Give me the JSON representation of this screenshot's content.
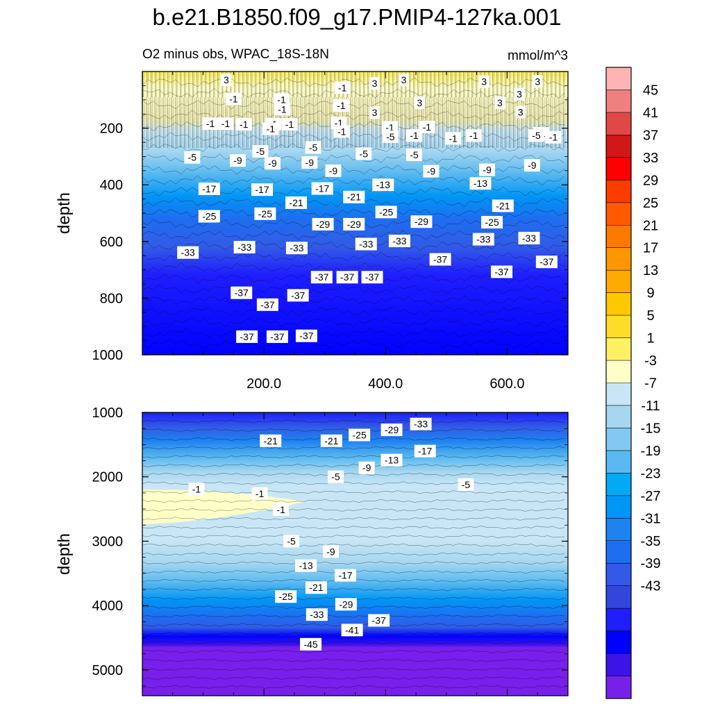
{
  "chart_data": {
    "type": "contour",
    "title": "b.e21.B1850.f09_g17.PMIP4-127ka.001",
    "subtitle_left": "O2 minus obs, WPAC_18S-18N",
    "subtitle_right": "mmol/m^3",
    "colorbar": {
      "levels": [
        45,
        41,
        37,
        33,
        29,
        25,
        21,
        17,
        13,
        9,
        5,
        1,
        -3,
        -7,
        -11,
        -15,
        -19,
        -23,
        -27,
        -31,
        -35,
        -39,
        -43
      ],
      "colors": [
        "#ffb4b4",
        "#f08080",
        "#e04848",
        "#d01818",
        "#ff0000",
        "#ff3c00",
        "#ff5a00",
        "#ff7800",
        "#ff9600",
        "#ffaa00",
        "#ffc800",
        "#ffdc28",
        "#fff064",
        "#ffffc8",
        "#c8e6f5",
        "#a5d7f0",
        "#82c8f0",
        "#5ab9f0",
        "#00aaf5",
        "#0096f5",
        "#1e82f0",
        "#1e6ef0",
        "#325ae6",
        "#3246dc",
        "#1e1eff",
        "#0000ff",
        "#3c14e6",
        "#7820eb"
      ]
    },
    "panels": [
      {
        "id": "upper",
        "ylabel": "depth",
        "ylim": [
          0,
          1000
        ],
        "yticks": [
          200,
          400,
          600,
          800,
          1000
        ],
        "xlim": [
          0,
          700
        ],
        "xticks": [
          "200.0",
          "400.0",
          "600.0"
        ],
        "xtick_values": [
          200,
          400,
          600
        ],
        "contour_labels": [
          {
            "text": "3",
            "x": 138,
            "y": 30
          },
          {
            "text": "3",
            "x": 382,
            "y": 42
          },
          {
            "text": "3",
            "x": 430,
            "y": 30
          },
          {
            "text": "3",
            "x": 562,
            "y": 36
          },
          {
            "text": "3",
            "x": 650,
            "y": 35
          },
          {
            "text": "3",
            "x": 620,
            "y": 80
          },
          {
            "text": "3",
            "x": 588,
            "y": 110
          },
          {
            "text": "3",
            "x": 622,
            "y": 143
          },
          {
            "text": "3",
            "x": 382,
            "y": 145
          },
          {
            "text": "3",
            "x": 456,
            "y": 110
          },
          {
            "text": "-1",
            "x": 112,
            "y": 184
          },
          {
            "text": "-1",
            "x": 137,
            "y": 184
          },
          {
            "text": "-1",
            "x": 167,
            "y": 186
          },
          {
            "text": "-1",
            "x": 215,
            "y": 186
          },
          {
            "text": "-1",
            "x": 323,
            "y": 181
          },
          {
            "text": "-1",
            "x": 327,
            "y": 120
          },
          {
            "text": "-1",
            "x": 328,
            "y": 212
          },
          {
            "text": "-1",
            "x": 407,
            "y": 197
          },
          {
            "text": "-1",
            "x": 447,
            "y": 226
          },
          {
            "text": "-1",
            "x": 468,
            "y": 196
          },
          {
            "text": "-1",
            "x": 511,
            "y": 236
          },
          {
            "text": "-1",
            "x": 545,
            "y": 226
          },
          {
            "text": "-1",
            "x": 211,
            "y": 202
          },
          {
            "text": "-1",
            "x": 242,
            "y": 186
          },
          {
            "text": "-1",
            "x": 230,
            "y": 133
          },
          {
            "text": "-1",
            "x": 150,
            "y": 97
          },
          {
            "text": "-1",
            "x": 229,
            "y": 99
          },
          {
            "text": "-1",
            "x": 329,
            "y": 57
          },
          {
            "text": "-1",
            "x": 656,
            "y": 218
          },
          {
            "text": "-1",
            "x": 676,
            "y": 232
          },
          {
            "text": "-5",
            "x": 82,
            "y": 303
          },
          {
            "text": "-5",
            "x": 281,
            "y": 268
          },
          {
            "text": "-5",
            "x": 194,
            "y": 282
          },
          {
            "text": "-5",
            "x": 364,
            "y": 290
          },
          {
            "text": "-5",
            "x": 447,
            "y": 294
          },
          {
            "text": "-5",
            "x": 408,
            "y": 230
          },
          {
            "text": "-5",
            "x": 648,
            "y": 226
          },
          {
            "text": "-9",
            "x": 157,
            "y": 314
          },
          {
            "text": "-9",
            "x": 214,
            "y": 324
          },
          {
            "text": "-9",
            "x": 275,
            "y": 321
          },
          {
            "text": "-9",
            "x": 314,
            "y": 350
          },
          {
            "text": "-9",
            "x": 475,
            "y": 352
          },
          {
            "text": "-9",
            "x": 567,
            "y": 347
          },
          {
            "text": "-9",
            "x": 641,
            "y": 331
          },
          {
            "text": "-13",
            "x": 556,
            "y": 395
          },
          {
            "text": "-13",
            "x": 396,
            "y": 400
          },
          {
            "text": "-17",
            "x": 110,
            "y": 414
          },
          {
            "text": "-17",
            "x": 197,
            "y": 417
          },
          {
            "text": "-17",
            "x": 296,
            "y": 413
          },
          {
            "text": "-21",
            "x": 253,
            "y": 463
          },
          {
            "text": "-21",
            "x": 348,
            "y": 443
          },
          {
            "text": "-21",
            "x": 593,
            "y": 474
          },
          {
            "text": "-25",
            "x": 110,
            "y": 511
          },
          {
            "text": "-25",
            "x": 202,
            "y": 502
          },
          {
            "text": "-25",
            "x": 401,
            "y": 496
          },
          {
            "text": "-25",
            "x": 575,
            "y": 532
          },
          {
            "text": "-29",
            "x": 297,
            "y": 539
          },
          {
            "text": "-29",
            "x": 348,
            "y": 539
          },
          {
            "text": "-29",
            "x": 459,
            "y": 530
          },
          {
            "text": "-33",
            "x": 75,
            "y": 639
          },
          {
            "text": "-33",
            "x": 168,
            "y": 620
          },
          {
            "text": "-33",
            "x": 254,
            "y": 623
          },
          {
            "text": "-33",
            "x": 368,
            "y": 609
          },
          {
            "text": "-33",
            "x": 423,
            "y": 598
          },
          {
            "text": "-33",
            "x": 561,
            "y": 592
          },
          {
            "text": "-33",
            "x": 636,
            "y": 588
          },
          {
            "text": "-37",
            "x": 490,
            "y": 663
          },
          {
            "text": "-37",
            "x": 665,
            "y": 672
          },
          {
            "text": "-37",
            "x": 591,
            "y": 707
          },
          {
            "text": "-37",
            "x": 295,
            "y": 726
          },
          {
            "text": "-37",
            "x": 337,
            "y": 726
          },
          {
            "text": "-37",
            "x": 378,
            "y": 726
          },
          {
            "text": "-37",
            "x": 163,
            "y": 781
          },
          {
            "text": "-37",
            "x": 206,
            "y": 823
          },
          {
            "text": "-37",
            "x": 256,
            "y": 790
          },
          {
            "text": "-37",
            "x": 172,
            "y": 936
          },
          {
            "text": "-37",
            "x": 222,
            "y": 936
          },
          {
            "text": "-37",
            "x": 270,
            "y": 933
          }
        ]
      },
      {
        "id": "lower",
        "ylabel": "depth",
        "ylim": [
          1000,
          5400
        ],
        "yticks": [
          1000,
          2000,
          3000,
          4000,
          5000
        ],
        "xlim": [
          0,
          700
        ],
        "xticks": [],
        "contour_labels": [
          {
            "text": "-33",
            "x": 458,
            "y": 1180
          },
          {
            "text": "-29",
            "x": 410,
            "y": 1270
          },
          {
            "text": "-25",
            "x": 357,
            "y": 1350
          },
          {
            "text": "-21",
            "x": 211,
            "y": 1440
          },
          {
            "text": "-21",
            "x": 311,
            "y": 1440
          },
          {
            "text": "-17",
            "x": 465,
            "y": 1600
          },
          {
            "text": "-13",
            "x": 410,
            "y": 1740
          },
          {
            "text": "-9",
            "x": 369,
            "y": 1860
          },
          {
            "text": "-5",
            "x": 318,
            "y": 2000
          },
          {
            "text": "-5",
            "x": 532,
            "y": 2120
          },
          {
            "text": "-1",
            "x": 89,
            "y": 2190
          },
          {
            "text": "-1",
            "x": 193,
            "y": 2260
          },
          {
            "text": "-1",
            "x": 228,
            "y": 2510
          },
          {
            "text": "-5",
            "x": 245,
            "y": 3000
          },
          {
            "text": "-9",
            "x": 310,
            "y": 3160
          },
          {
            "text": "-13",
            "x": 269,
            "y": 3380
          },
          {
            "text": "-17",
            "x": 334,
            "y": 3530
          },
          {
            "text": "-21",
            "x": 286,
            "y": 3720
          },
          {
            "text": "-25",
            "x": 236,
            "y": 3860
          },
          {
            "text": "-29",
            "x": 335,
            "y": 3980
          },
          {
            "text": "-33",
            "x": 287,
            "y": 4140
          },
          {
            "text": "-37",
            "x": 389,
            "y": 4230
          },
          {
            "text": "-41",
            "x": 345,
            "y": 4380
          },
          {
            "text": "-45",
            "x": 277,
            "y": 4600
          }
        ]
      }
    ]
  }
}
